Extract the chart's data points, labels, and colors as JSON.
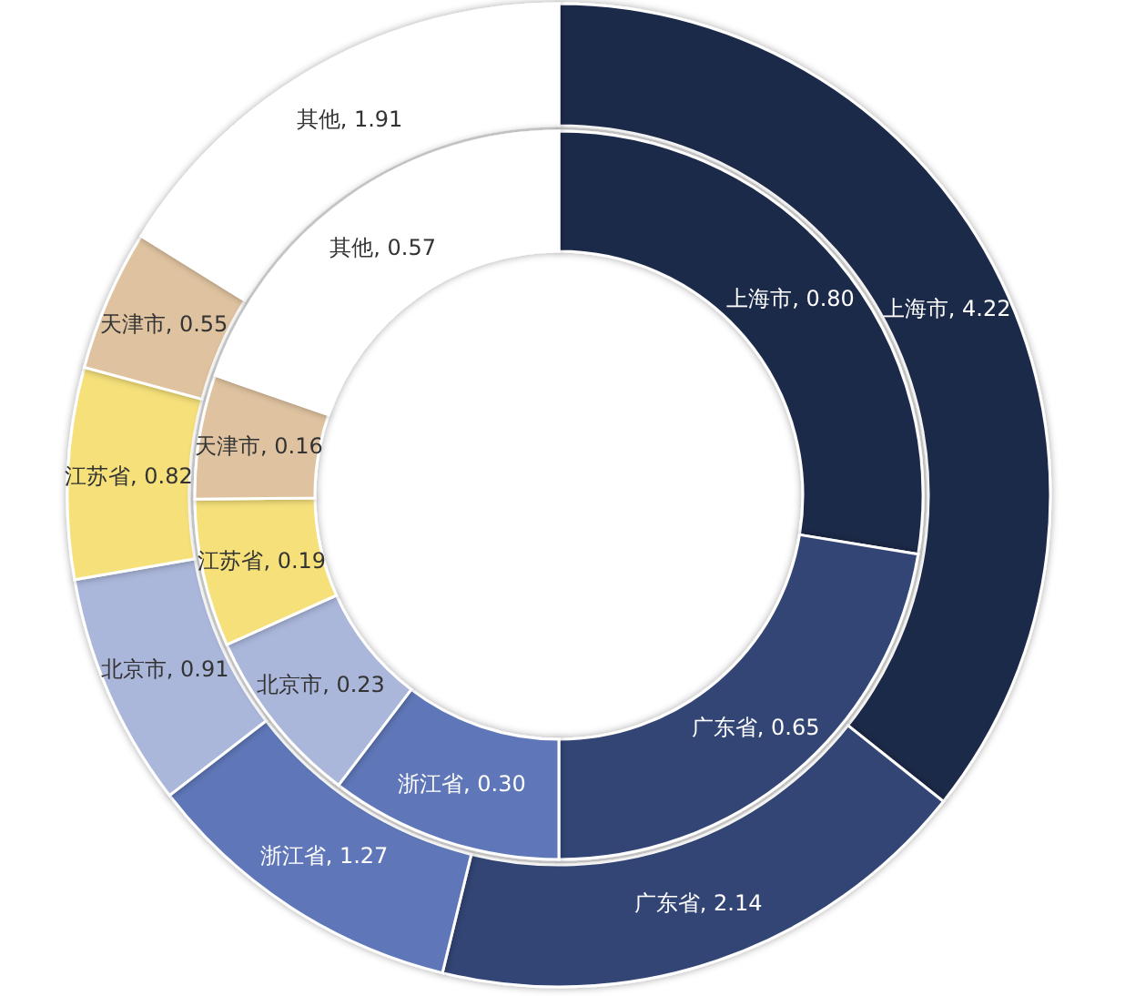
{
  "chart_data": [
    {
      "type": "donut",
      "categories": [
        "上海市",
        "广东省",
        "浙江省",
        "北京市",
        "江苏省",
        "天津市",
        "其他"
      ],
      "values": [
        4.22,
        2.14,
        1.27,
        0.91,
        0.82,
        0.55,
        1.91
      ],
      "value_labels": [
        "4.22",
        "2.14",
        "1.27",
        "0.91",
        "0.82",
        "0.55",
        "1.91"
      ],
      "colors": [
        "#1e2a4a",
        "#324474",
        "#5f77b8",
        "#aab6da",
        "#f5e07a",
        "#dfc3a0",
        "#ffffff"
      ]
    },
    {
      "type": "donut",
      "categories": [
        "上海市",
        "广东省",
        "浙江省",
        "北京市",
        "江苏省",
        "天津市",
        "其他"
      ],
      "values": [
        0.8,
        0.65,
        0.3,
        0.23,
        0.19,
        0.16,
        0.57
      ],
      "value_labels": [
        "0.80",
        "0.65",
        "0.30",
        "0.23",
        "0.19",
        "0.16",
        "0.57"
      ],
      "colors": [
        "#1e2a4a",
        "#324474",
        "#5f77b8",
        "#aab6da",
        "#f5e07a",
        "#dfc3a0",
        "#ffffff"
      ]
    }
  ]
}
